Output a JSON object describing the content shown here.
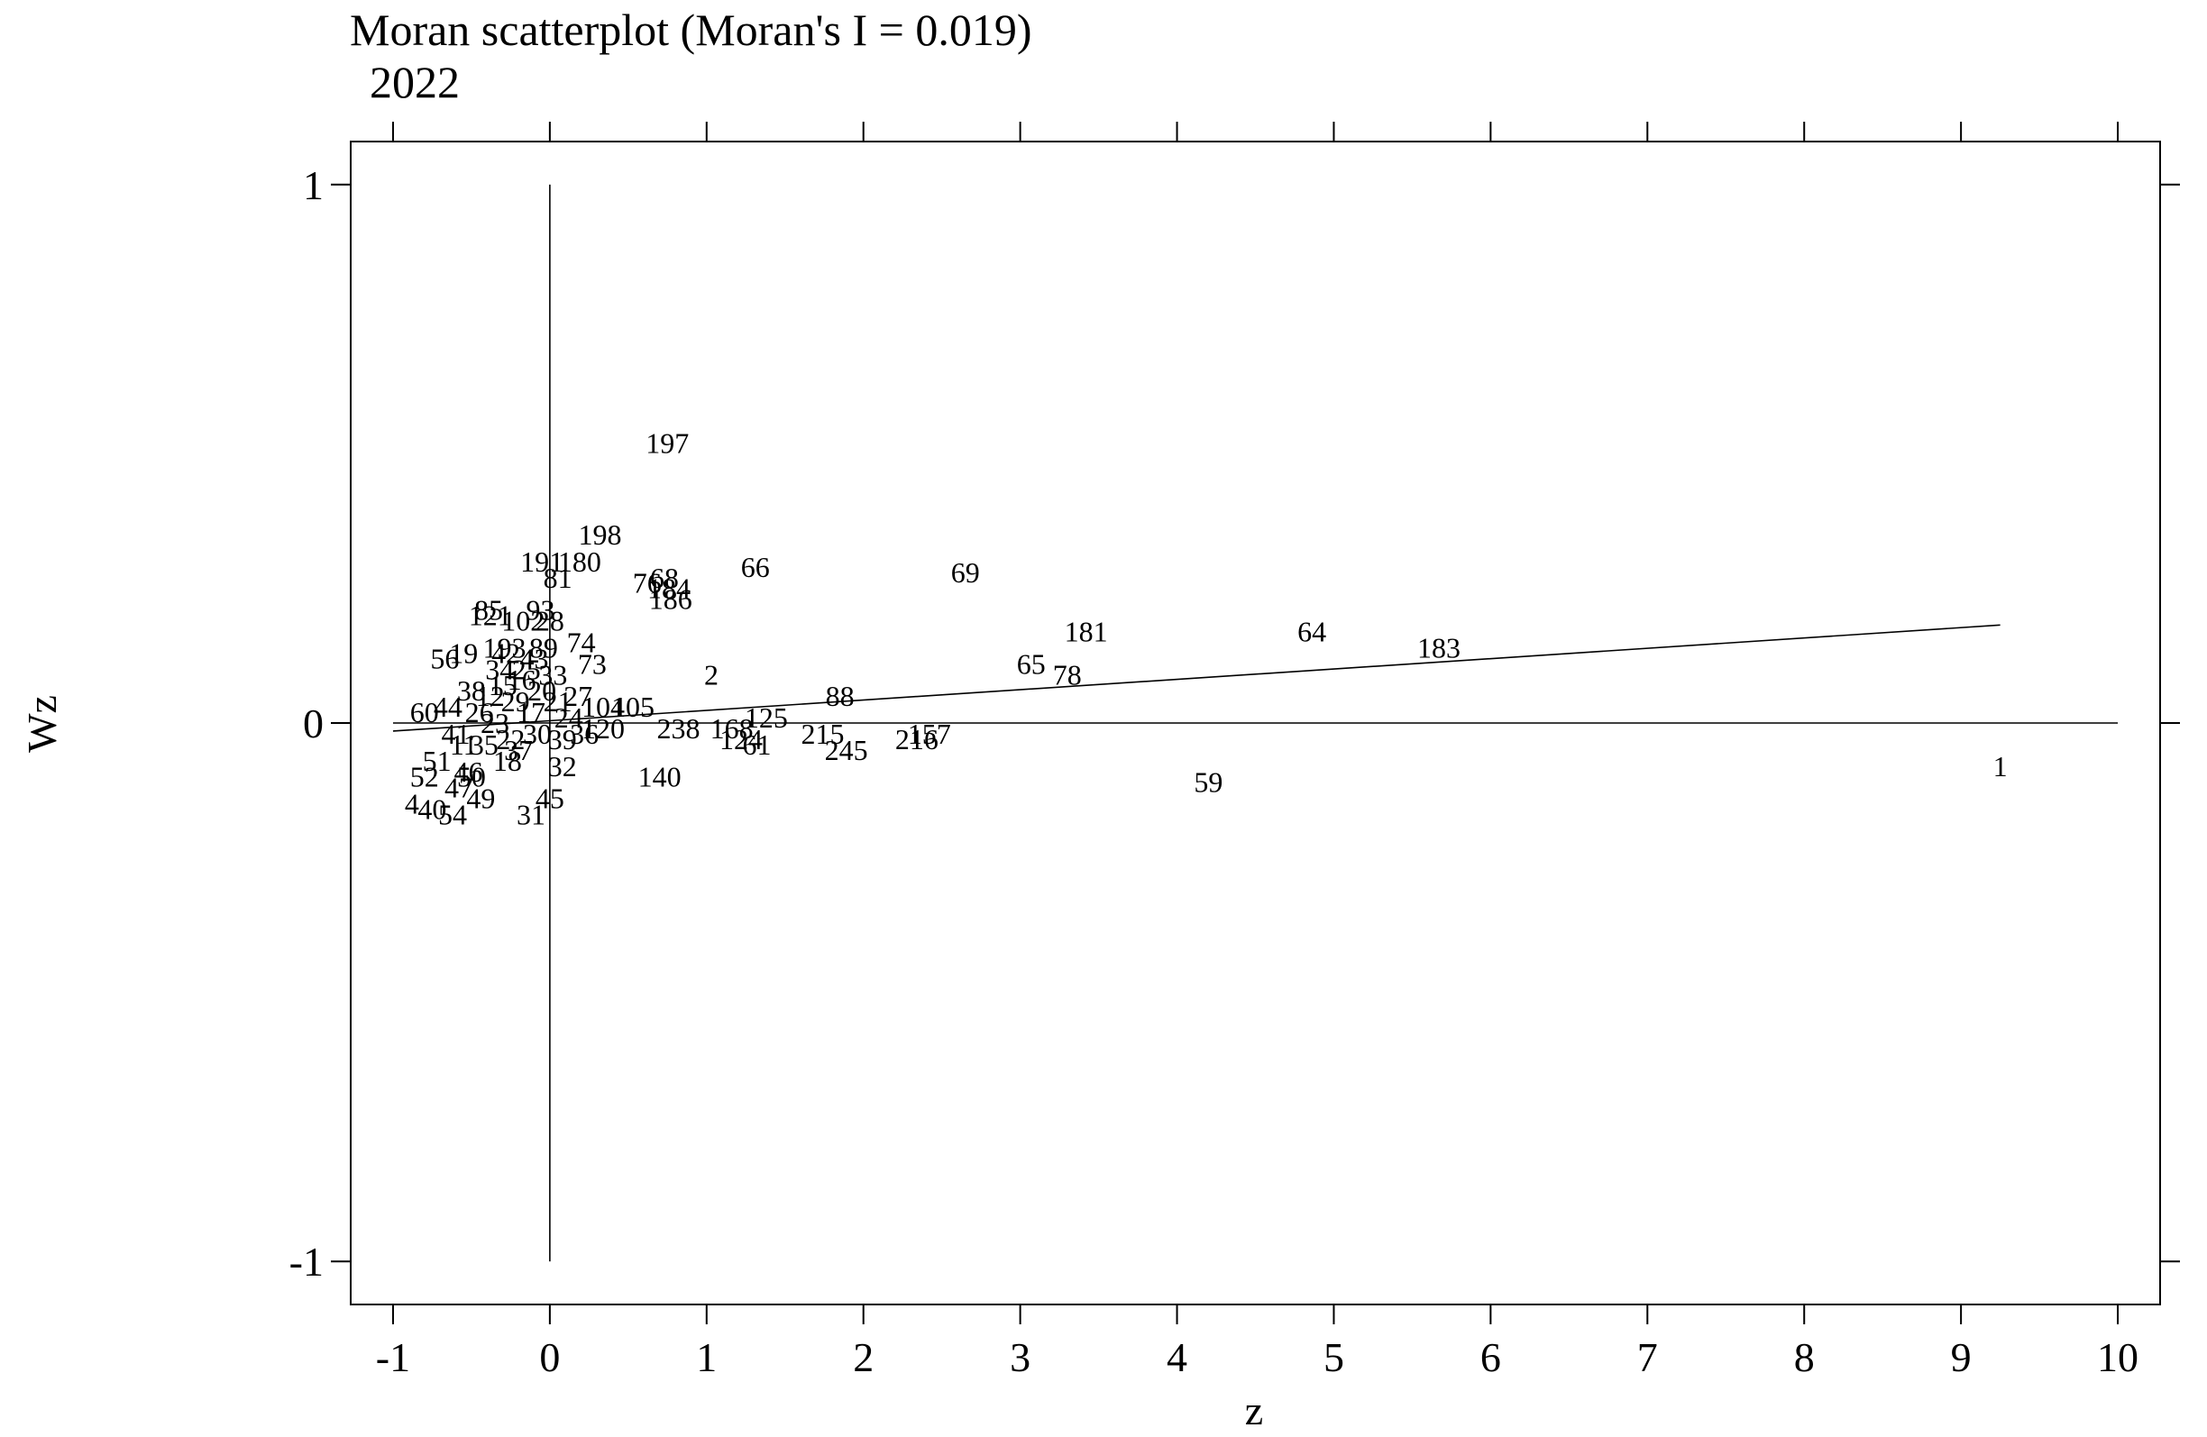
{
  "chart_data": {
    "type": "scatter",
    "title": "Moran scatterplot (Moran's I = 0.019)",
    "subtitle": "2022",
    "xlabel": "z",
    "ylabel": "Wz",
    "xlim": [
      -1.27,
      10.27
    ],
    "ylim": [
      -1.08,
      1.08
    ],
    "x_ticks": [
      -1,
      0,
      1,
      2,
      3,
      4,
      5,
      6,
      7,
      8,
      9,
      10
    ],
    "y_ticks": [
      -1,
      0,
      1
    ],
    "grid": false,
    "moran_i": 0.019,
    "regression_line": {
      "x": [
        -1.0,
        9.25
      ],
      "y": [
        -0.015,
        0.182
      ]
    },
    "points": [
      {
        "label": "197",
        "x": 0.75,
        "y": 0.52
      },
      {
        "label": "198",
        "x": 0.32,
        "y": 0.35
      },
      {
        "label": "191",
        "x": -0.05,
        "y": 0.3
      },
      {
        "label": "180",
        "x": 0.19,
        "y": 0.3
      },
      {
        "label": "81",
        "x": 0.05,
        "y": 0.27
      },
      {
        "label": "66",
        "x": 1.31,
        "y": 0.29
      },
      {
        "label": "69",
        "x": 2.65,
        "y": 0.28
      },
      {
        "label": "68",
        "x": 0.73,
        "y": 0.27
      },
      {
        "label": "76",
        "x": 0.62,
        "y": 0.26
      },
      {
        "label": "184",
        "x": 0.76,
        "y": 0.25
      },
      {
        "label": "186",
        "x": 0.77,
        "y": 0.23
      },
      {
        "label": "85",
        "x": -0.39,
        "y": 0.21
      },
      {
        "label": "93",
        "x": -0.06,
        "y": 0.21
      },
      {
        "label": "121",
        "x": -0.38,
        "y": 0.2
      },
      {
        "label": "102",
        "x": -0.17,
        "y": 0.19
      },
      {
        "label": "28",
        "x": 0.0,
        "y": 0.19
      },
      {
        "label": "74",
        "x": 0.2,
        "y": 0.15
      },
      {
        "label": "181",
        "x": 3.42,
        "y": 0.17
      },
      {
        "label": "64",
        "x": 4.86,
        "y": 0.17
      },
      {
        "label": "183",
        "x": 5.67,
        "y": 0.14
      },
      {
        "label": "56",
        "x": -0.67,
        "y": 0.12
      },
      {
        "label": "19",
        "x": -0.55,
        "y": 0.13
      },
      {
        "label": "193",
        "x": -0.29,
        "y": 0.14
      },
      {
        "label": "89",
        "x": -0.04,
        "y": 0.14
      },
      {
        "label": "73",
        "x": 0.27,
        "y": 0.11
      },
      {
        "label": "65",
        "x": 3.07,
        "y": 0.11
      },
      {
        "label": "78",
        "x": 3.3,
        "y": 0.09
      },
      {
        "label": "2",
        "x": 1.03,
        "y": 0.09
      },
      {
        "label": "88",
        "x": 1.85,
        "y": 0.05
      },
      {
        "label": "60",
        "x": -0.8,
        "y": 0.02
      },
      {
        "label": "104",
        "x": 0.34,
        "y": 0.03
      },
      {
        "label": "105",
        "x": 0.53,
        "y": 0.03
      },
      {
        "label": "125",
        "x": 1.38,
        "y": 0.01
      },
      {
        "label": "238",
        "x": 0.82,
        "y": -0.01
      },
      {
        "label": "168",
        "x": 1.16,
        "y": -0.01
      },
      {
        "label": "124",
        "x": 1.22,
        "y": -0.03
      },
      {
        "label": "61",
        "x": 1.32,
        "y": -0.04
      },
      {
        "label": "215",
        "x": 1.74,
        "y": -0.02
      },
      {
        "label": "245",
        "x": 1.89,
        "y": -0.05
      },
      {
        "label": "216",
        "x": 2.34,
        "y": -0.03
      },
      {
        "label": "157",
        "x": 2.42,
        "y": -0.02
      },
      {
        "label": "120",
        "x": 0.34,
        "y": -0.01
      },
      {
        "label": "32",
        "x": 0.08,
        "y": -0.08
      },
      {
        "label": "18",
        "x": -0.27,
        "y": -0.07
      },
      {
        "label": "140",
        "x": 0.7,
        "y": -0.1
      },
      {
        "label": "59",
        "x": 4.2,
        "y": -0.11
      },
      {
        "label": "1",
        "x": 9.25,
        "y": -0.08
      },
      {
        "label": "45",
        "x": 0.0,
        "y": -0.14
      },
      {
        "label": "31",
        "x": -0.12,
        "y": -0.17
      },
      {
        "label": "49",
        "x": -0.44,
        "y": -0.14
      },
      {
        "label": "4",
        "x": -0.88,
        "y": -0.15
      },
      {
        "label": "54",
        "x": -0.62,
        "y": -0.17
      },
      {
        "label": "40",
        "x": -0.75,
        "y": -0.16
      },
      {
        "label": "52",
        "x": -0.8,
        "y": -0.1
      },
      {
        "label": "51",
        "x": -0.72,
        "y": -0.07
      },
      {
        "label": "50",
        "x": -0.5,
        "y": -0.1
      },
      {
        "label": "11",
        "x": -0.55,
        "y": -0.04
      },
      {
        "label": "12",
        "x": -0.38,
        "y": 0.05
      },
      {
        "label": "15",
        "x": -0.3,
        "y": 0.07
      },
      {
        "label": "16",
        "x": -0.18,
        "y": 0.08
      },
      {
        "label": "17",
        "x": -0.12,
        "y": 0.02
      },
      {
        "label": "20",
        "x": -0.05,
        "y": 0.06
      },
      {
        "label": "21",
        "x": 0.05,
        "y": 0.04
      },
      {
        "label": "22",
        "x": -0.25,
        "y": -0.03
      },
      {
        "label": "23",
        "x": -0.35,
        "y": 0.0
      },
      {
        "label": "24",
        "x": 0.12,
        "y": 0.01
      },
      {
        "label": "25",
        "x": -0.15,
        "y": 0.1
      },
      {
        "label": "26",
        "x": -0.45,
        "y": 0.02
      },
      {
        "label": "27",
        "x": 0.18,
        "y": 0.05
      },
      {
        "label": "29",
        "x": -0.22,
        "y": 0.04
      },
      {
        "label": "30",
        "x": -0.08,
        "y": -0.02
      },
      {
        "label": "33",
        "x": 0.02,
        "y": 0.09
      },
      {
        "label": "34",
        "x": -0.32,
        "y": 0.1
      },
      {
        "label": "35",
        "x": -0.42,
        "y": -0.04
      },
      {
        "label": "36",
        "x": 0.22,
        "y": -0.02
      },
      {
        "label": "37",
        "x": -0.2,
        "y": -0.05
      },
      {
        "label": "38",
        "x": -0.5,
        "y": 0.06
      },
      {
        "label": "39",
        "x": 0.08,
        "y": -0.03
      },
      {
        "label": "41",
        "x": -0.6,
        "y": -0.02
      },
      {
        "label": "42",
        "x": -0.28,
        "y": 0.13
      },
      {
        "label": "43",
        "x": -0.1,
        "y": 0.12
      },
      {
        "label": "44",
        "x": -0.65,
        "y": 0.03
      },
      {
        "label": "46",
        "x": -0.52,
        "y": -0.09
      },
      {
        "label": "47",
        "x": -0.58,
        "y": -0.12
      }
    ]
  }
}
